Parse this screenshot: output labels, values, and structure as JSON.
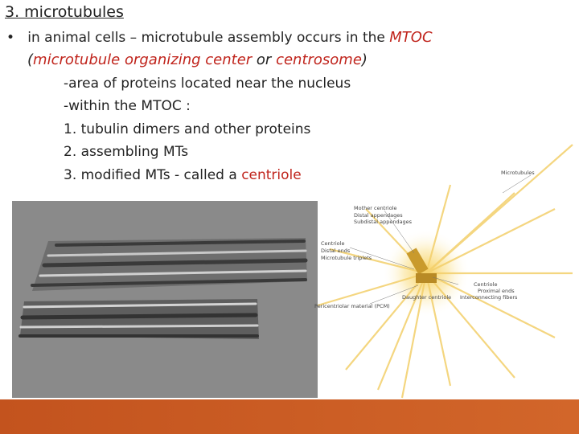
{
  "header": {
    "title": "3. microtubules"
  },
  "bullet": {
    "text": "in animal cells – microtubule assembly occurs in the",
    "highlight": "MTOC"
  },
  "paren": {
    "open": "(",
    "term1": "microtubule organizing center",
    "joiner": "or",
    "term2": "centrosome",
    "close": ")"
  },
  "subitems": [
    "-area of proteins located near the nucleus",
    "-within the MTOC :",
    "1. tubulin dimers and other proteins",
    "2. assembling MTs"
  ],
  "last_item": {
    "text": "3. modified MTs - called a",
    "highlight": "centriole"
  },
  "diagram": {
    "labels": {
      "microtubules": "Microtubules",
      "mother": "Mother centriole",
      "distal_app": "Distal appendages",
      "subdistal_app": "Subdistal appendages",
      "centriole": "Centriole",
      "distal_ends": "Distal ends",
      "triplets": "Microtubule triplets",
      "centriole2": "Centriole",
      "proximal": "Proximal ends",
      "fibers": "Interconnecting fibers",
      "daughter": "Daughter centriole",
      "pcm": "Pericentriolar material (PCM)"
    }
  }
}
